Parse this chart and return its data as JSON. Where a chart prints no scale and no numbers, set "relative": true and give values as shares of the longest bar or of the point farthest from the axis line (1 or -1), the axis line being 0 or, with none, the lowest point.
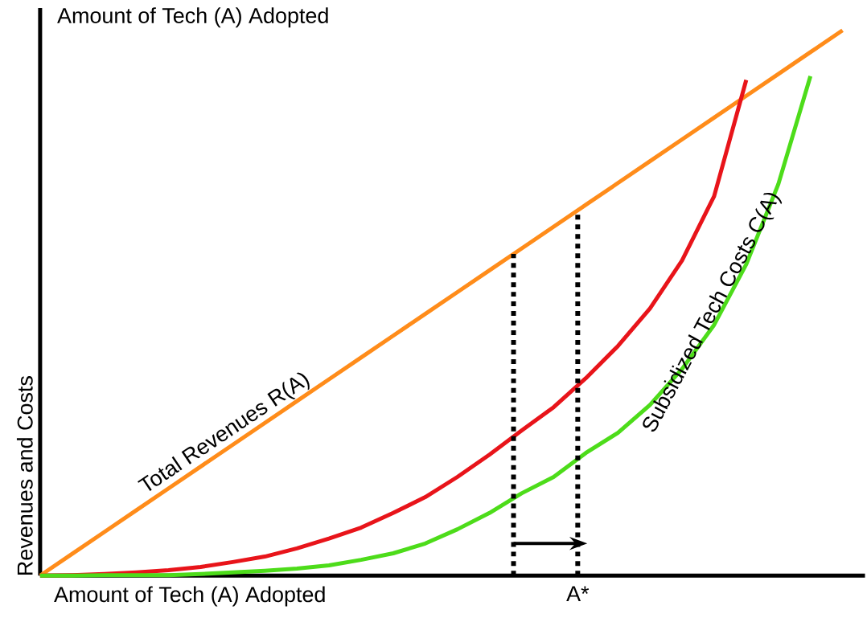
{
  "chart_data": {
    "type": "line",
    "title": "Amount of Tech (A) Adopted",
    "xlabel": "Amount of Tech (A) Adopted",
    "ylabel": "Revenues and Costs",
    "relative": true,
    "categories": [
      null,
      null,
      null,
      null,
      null,
      null,
      null,
      null,
      null,
      null,
      null,
      null,
      null,
      null,
      null,
      null,
      null,
      null,
      null,
      null,
      null,
      null,
      null,
      null,
      null,
      null
    ],
    "series": [
      {
        "name": "Total Revenues R(A)",
        "color": "#ff8c1a",
        "values": [
          0,
          0.04,
          0.08,
          0.12,
          0.16,
          0.2,
          0.24,
          0.28,
          0.32,
          0.36,
          0.4,
          0.44,
          0.48,
          0.52,
          0.56,
          0.6,
          0.64,
          0.68,
          0.72,
          0.76,
          0.8,
          0.84,
          0.88,
          0.92,
          0.96,
          1.0
        ]
      },
      {
        "color": "#e8141a",
        "values": [
          0,
          0.001,
          0.003,
          0.006,
          0.01,
          0.016,
          0.025,
          0.035,
          0.05,
          0.068,
          0.088,
          0.115,
          0.144,
          0.181,
          0.222,
          0.266,
          0.309,
          0.362,
          0.421,
          0.49,
          0.578,
          0.696,
          0.909,
          null,
          null,
          null
        ]
      },
      {
        "name": "Subsidized Tech Costs C(A)",
        "color": "#4ddc1a",
        "values": [
          0,
          0,
          0.001,
          0.001,
          0.001,
          0.003,
          0.006,
          0.009,
          0.013,
          0.019,
          0.029,
          0.041,
          0.059,
          0.085,
          0.115,
          0.151,
          0.181,
          0.225,
          0.262,
          0.313,
          0.379,
          0.46,
          0.571,
          0.718,
          0.916,
          null
        ]
      }
    ],
    "annotations": [
      "A*"
    ]
  }
}
